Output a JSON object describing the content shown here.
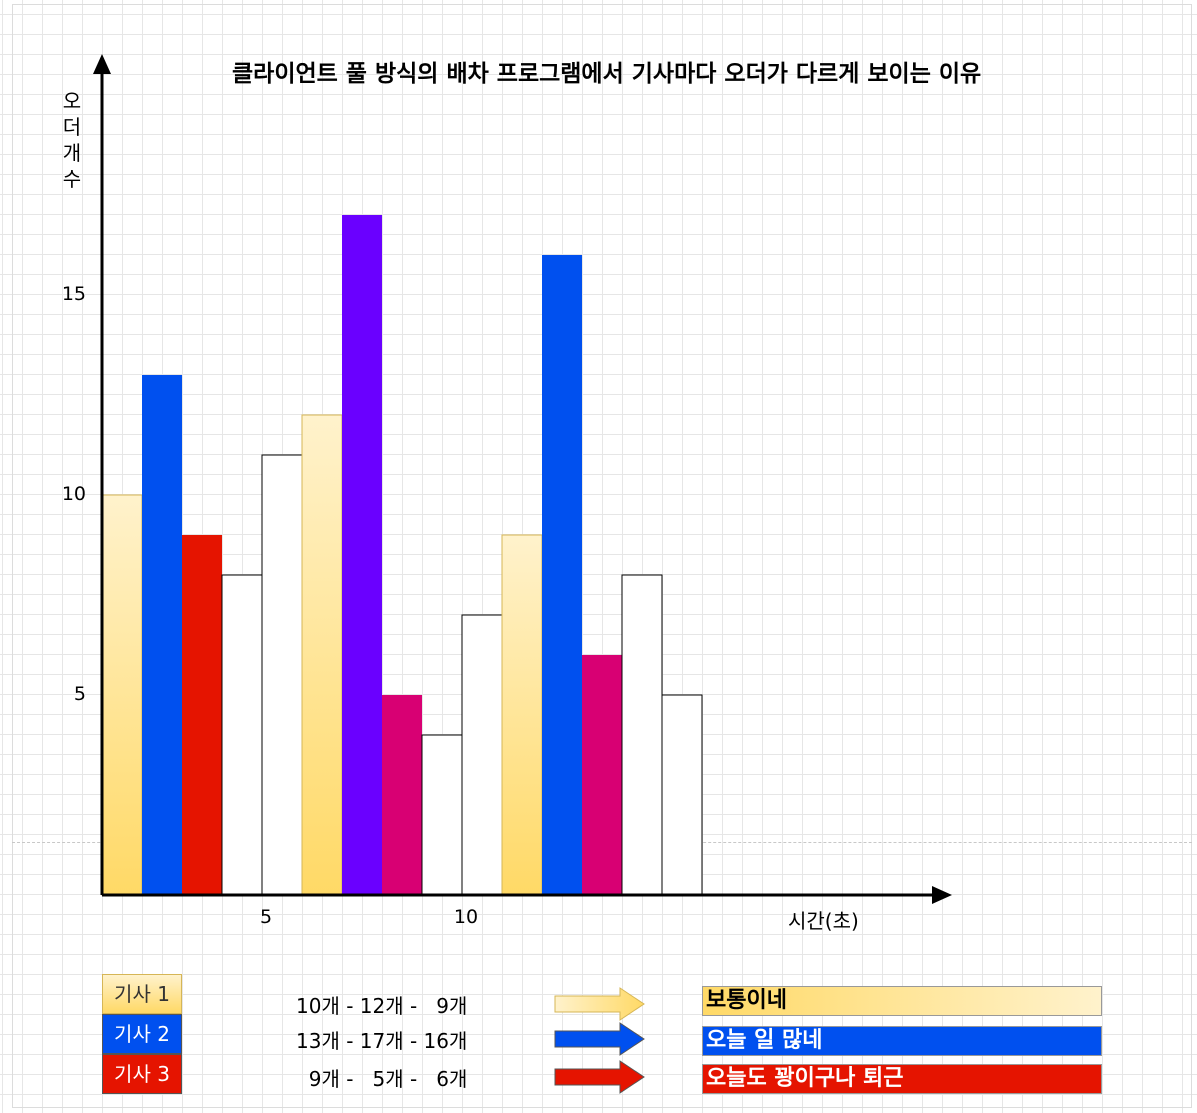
{
  "chart_data": {
    "type": "bar",
    "title": "클라이언트 풀 방식의 배차 프로그램에서 기사마다 오더가 다르게 보이는 이유",
    "ylabel": "오더개수",
    "xlabel": "시간(초)",
    "ylim": [
      0,
      20
    ],
    "yticks": [
      {
        "value": 5,
        "label": "5"
      },
      {
        "value": 10,
        "label": "10"
      },
      {
        "value": 15,
        "label": "15"
      }
    ],
    "xticks": [
      {
        "bar_index": 5,
        "label": "5"
      },
      {
        "bar_index": 10,
        "label": "10"
      }
    ],
    "grid": true,
    "bars": [
      {
        "value": 10,
        "color": "gold",
        "series": "기사 1"
      },
      {
        "value": 13,
        "color": "#0050ef",
        "series": "기사 2"
      },
      {
        "value": 9,
        "color": "#e51400",
        "series": "기사 3"
      },
      {
        "value": 8,
        "color": "#ffffff"
      },
      {
        "value": 11,
        "color": "#ffffff"
      },
      {
        "value": 12,
        "color": "gold",
        "series": "기사 1"
      },
      {
        "value": 17,
        "color": "#6a00ff",
        "series": "기사 2"
      },
      {
        "value": 5,
        "color": "#d80073",
        "series": "기사 3"
      },
      {
        "value": 4,
        "color": "#ffffff"
      },
      {
        "value": 7,
        "color": "#ffffff"
      },
      {
        "value": 9,
        "color": "gold",
        "series": "기사 1"
      },
      {
        "value": 16,
        "color": "#0050ef",
        "series": "기사 2"
      },
      {
        "value": 6,
        "color": "#d80073",
        "series": "기사 3"
      },
      {
        "value": 8,
        "color": "#ffffff"
      },
      {
        "value": 5,
        "color": "#ffffff"
      }
    ]
  },
  "legend": [
    {
      "label": "기사 1",
      "color": "gold",
      "counts": "10개 - 12개 -   9개",
      "verdict": "보통이네",
      "verdict_color": "#000000"
    },
    {
      "label": "기사 2",
      "color": "#0050ef",
      "counts": "13개 - 17개 - 16개",
      "verdict": "오늘 일 많네",
      "verdict_color": "#ffffff"
    },
    {
      "label": "기사 3",
      "color": "#e51400",
      "counts": "  9개 -   5개 -   6개",
      "verdict": "오늘도 꽝이구나 퇴근",
      "verdict_color": "#ffffff"
    }
  ]
}
